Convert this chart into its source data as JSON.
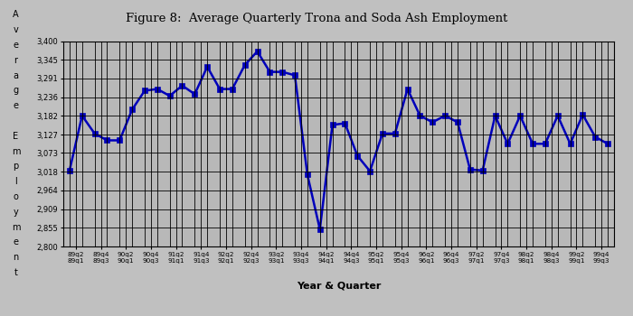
{
  "title": "Figure 8:  Average Quarterly Trona and Soda Ash Employment",
  "xlabel": "Year & Quarter",
  "ylabel_chars": [
    "A",
    "v",
    "e",
    "r",
    "a",
    "g",
    "e",
    "",
    "E",
    "m",
    "p",
    "l",
    "o",
    "y",
    "m",
    "e",
    "n",
    "t"
  ],
  "background_color": "#c0c0c0",
  "plot_bg_color": "#b8b8b8",
  "line_color": "#0000bb",
  "marker_color": "#0000bb",
  "ylim": [
    2800,
    3400
  ],
  "ytick_step": 54.5,
  "yticks": [
    2800,
    2855,
    2909,
    2964,
    3018,
    3073,
    3127,
    3182,
    3236,
    3291,
    3345,
    3400
  ],
  "x_labels_top": [
    "89q2",
    "89q4",
    "90q2",
    "90q4",
    "91q2",
    "91q4",
    "92q2",
    "92q4",
    "93q2",
    "93q4",
    "94q2",
    "94q4",
    "95q2",
    "95q4",
    "96q2",
    "96q4",
    "97q2",
    "97q4",
    "98q2",
    "98q4",
    "99q2",
    "99q4"
  ],
  "x_labels_bot": [
    "89q1",
    "89q3",
    "90q1",
    "90q3",
    "91q1",
    "91q3",
    "92q1",
    "92q3",
    "93q1",
    "93q3",
    "94q1",
    "94q3",
    "95q1",
    "95q3",
    "96q1",
    "96q3",
    "97q1",
    "97q3",
    "98q1",
    "98q3",
    "99q1",
    "99q3"
  ],
  "quarters": [
    "89q1",
    "89q2",
    "89q3",
    "89q4",
    "90q1",
    "90q2",
    "90q3",
    "90q4",
    "91q1",
    "91q2",
    "91q3",
    "91q4",
    "92q1",
    "92q2",
    "92q3",
    "92q4",
    "93q1",
    "93q2",
    "93q3",
    "93q4",
    "94q1",
    "94q2",
    "94q3",
    "94q4",
    "95q1",
    "95q2",
    "95q3",
    "95q4",
    "96q1",
    "96q2",
    "96q3",
    "96q4",
    "97q1",
    "97q2",
    "97q3",
    "97q4",
    "98q1",
    "98q2",
    "98q3",
    "98q4",
    "99q1",
    "99q2",
    "99q3",
    "99q4"
  ],
  "values": [
    3022,
    3182,
    3130,
    3110,
    3110,
    3200,
    3255,
    3260,
    3240,
    3270,
    3245,
    3325,
    3260,
    3260,
    3330,
    3370,
    3310,
    3310,
    3300,
    3010,
    2850,
    3155,
    3160,
    3065,
    3020,
    3130,
    3130,
    3260,
    3182,
    3163,
    3182,
    3163,
    3025,
    3022,
    3182,
    3100,
    3182,
    3100,
    3100,
    3182,
    3100,
    3185,
    3120,
    3100
  ]
}
